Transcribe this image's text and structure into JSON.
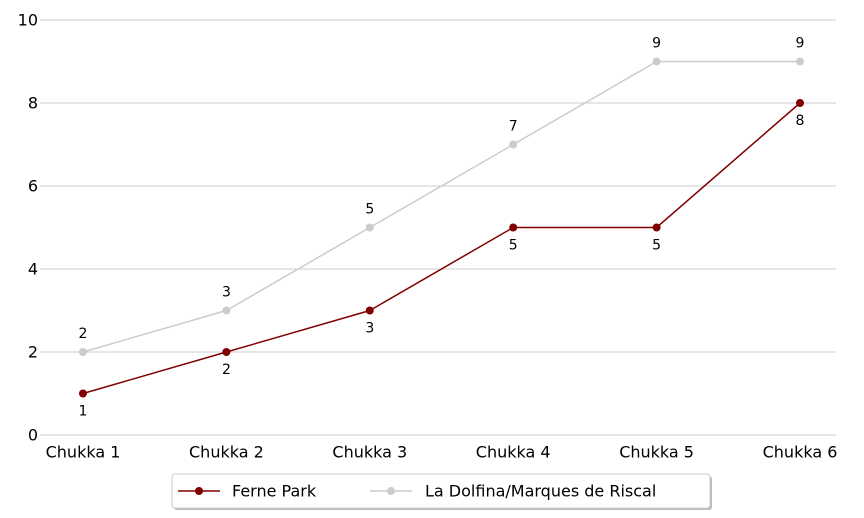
{
  "chart_data": {
    "type": "line",
    "categories": [
      "Chukka 1",
      "Chukka 2",
      "Chukka 3",
      "Chukka 4",
      "Chukka 5",
      "Chukka 6"
    ],
    "series": [
      {
        "name": "Ferne Park",
        "values": [
          1,
          2,
          3,
          5,
          5,
          8
        ],
        "color": "#800000",
        "label_position": "below"
      },
      {
        "name": "La Dolfina/Marques de Riscal",
        "values": [
          2,
          3,
          5,
          7,
          9,
          9
        ],
        "color": "#cccccc",
        "label_position": "above"
      }
    ],
    "yticks": [
      0,
      2,
      4,
      6,
      8,
      10
    ],
    "ylim": [
      0,
      10
    ],
    "grid": "horizontal",
    "legend": "bottom-center",
    "title": "",
    "xlabel": "",
    "ylabel": ""
  }
}
